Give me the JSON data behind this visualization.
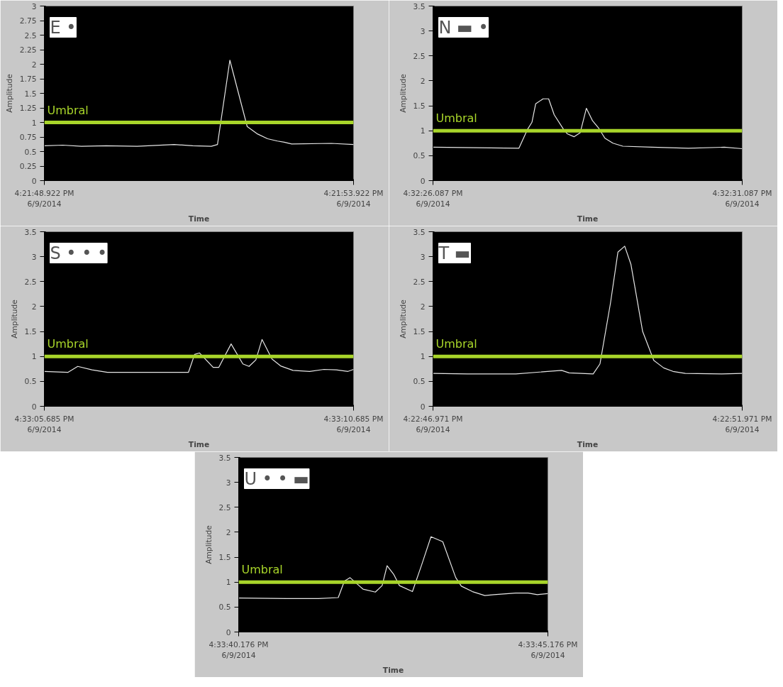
{
  "chart_data": [
    {
      "type": "line",
      "title": "E •",
      "xlabel": "Time",
      "ylabel": "Amplitude",
      "color": "#e6e6e6",
      "x": [
        "2014-06-09T16:21:48.922",
        "2014-06-09T16:21:49.222",
        "2014-06-09T16:21:49.522",
        "2014-06-09T16:21:49.922",
        "2014-06-09T16:21:50.422",
        "2014-06-09T16:21:51.022",
        "2014-06-09T16:21:51.322",
        "2014-06-09T16:21:51.622",
        "2014-06-09T16:21:51.722",
        "2014-06-09T16:21:51.922",
        "2014-06-09T16:21:52.202",
        "2014-06-09T16:21:52.372",
        "2014-06-09T16:21:52.532",
        "2014-06-09T16:21:52.692",
        "2014-06-09T16:21:52.802",
        "2014-06-09T16:21:52.922",
        "2014-06-09T16:21:53.562",
        "2014-06-09T16:21:53.922"
      ],
      "values": [
        0.6,
        0.61,
        0.59,
        0.6,
        0.59,
        0.62,
        0.6,
        0.59,
        0.62,
        2.07,
        0.93,
        0.8,
        0.72,
        0.68,
        0.66,
        0.63,
        0.64,
        0.62
      ],
      "xlim": [
        "2014-06-09T16:21:48.922",
        "2014-06-09T16:21:53.922"
      ],
      "xticks": [
        {
          "value": "2014-06-09T16:21:48.922",
          "label": "4:21:48.922 PM\n6/9/2014"
        },
        {
          "value": "2014-06-09T16:21:53.922",
          "label": "4:21:53.922 PM\n6/9/2014"
        }
      ],
      "ylim": [
        0,
        3
      ],
      "yticks": [
        0,
        0.25,
        0.5,
        0.75,
        1,
        1.25,
        1.5,
        1.75,
        2,
        2.25,
        2.5,
        2.75,
        3
      ],
      "ref_lines": [
        {
          "axis": "y",
          "value": 1,
          "label": "Umbral",
          "color": "#a8d52a"
        }
      ]
    },
    {
      "type": "line",
      "title": "N ▬ •",
      "xlabel": "Time",
      "ylabel": "Amplitude",
      "color": "#e6e6e6",
      "x": [
        "2014-06-09T16:32:26.087",
        "2014-06-09T16:32:26.787",
        "2014-06-09T16:32:27.477",
        "2014-06-09T16:32:27.617",
        "2014-06-09T16:32:27.687",
        "2014-06-09T16:32:27.747",
        "2014-06-09T16:32:27.867",
        "2014-06-09T16:32:27.957",
        "2014-06-09T16:32:28.047",
        "2014-06-09T16:32:28.197",
        "2014-06-09T16:32:28.257",
        "2014-06-09T16:32:28.367",
        "2014-06-09T16:32:28.467",
        "2014-06-09T16:32:28.567",
        "2014-06-09T16:32:28.667",
        "2014-06-09T16:32:28.767",
        "2014-06-09T16:32:28.867",
        "2014-06-09T16:32:28.997",
        "2014-06-09T16:32:29.157",
        "2014-06-09T16:32:29.627",
        "2014-06-09T16:32:30.217",
        "2014-06-09T16:32:30.797",
        "2014-06-09T16:32:31.087"
      ],
      "values": [
        0.67,
        0.66,
        0.65,
        1.03,
        1.17,
        1.54,
        1.64,
        1.64,
        1.32,
        1.03,
        0.94,
        0.88,
        0.96,
        1.45,
        1.2,
        1.05,
        0.85,
        0.75,
        0.69,
        0.67,
        0.65,
        0.67,
        0.64
      ],
      "xlim": [
        "2014-06-09T16:32:26.087",
        "2014-06-09T16:32:31.087"
      ],
      "xticks": [
        {
          "value": "2014-06-09T16:32:26.087",
          "label": "4:32:26.087 PM\n6/9/2014"
        },
        {
          "value": "2014-06-09T16:32:31.087",
          "label": "4:32:31.087 PM\n6/9/2014"
        }
      ],
      "ylim": [
        0,
        3.5
      ],
      "yticks": [
        0,
        0.5,
        1,
        1.5,
        2,
        2.5,
        3,
        3.5
      ],
      "ref_lines": [
        {
          "axis": "y",
          "value": 1,
          "label": "Umbral",
          "color": "#a8d52a"
        }
      ]
    },
    {
      "type": "line",
      "title": "S • • •",
      "xlabel": "Time",
      "ylabel": "Amplitude",
      "color": "#e6e6e6",
      "x": [
        "2014-06-09T16:33:05.685",
        "2014-06-09T16:33:06.065",
        "2014-06-09T16:33:06.225",
        "2014-06-09T16:33:06.455",
        "2014-06-09T16:33:06.705",
        "2014-06-09T16:33:07.235",
        "2014-06-09T16:33:08.015",
        "2014-06-09T16:33:08.115",
        "2014-06-09T16:33:08.195",
        "2014-06-09T16:33:08.415",
        "2014-06-09T16:33:08.505",
        "2014-06-09T16:33:08.705",
        "2014-06-09T16:33:08.895",
        "2014-06-09T16:33:08.995",
        "2014-06-09T16:33:09.105",
        "2014-06-09T16:33:09.205",
        "2014-06-09T16:33:09.365",
        "2014-06-09T16:33:09.505",
        "2014-06-09T16:33:09.705",
        "2014-06-09T16:33:09.975",
        "2014-06-09T16:33:10.205",
        "2014-06-09T16:33:10.405",
        "2014-06-09T16:33:10.595",
        "2014-06-09T16:33:10.685"
      ],
      "values": [
        0.7,
        0.68,
        0.8,
        0.73,
        0.68,
        0.68,
        0.68,
        1.04,
        1.07,
        0.78,
        0.78,
        1.25,
        0.85,
        0.8,
        0.93,
        1.34,
        0.95,
        0.81,
        0.72,
        0.7,
        0.74,
        0.73,
        0.7,
        0.74
      ],
      "xlim": [
        "2014-06-09T16:33:05.685",
        "2014-06-09T16:33:10.685"
      ],
      "xticks": [
        {
          "value": "2014-06-09T16:33:05.685",
          "label": "4:33:05.685 PM\n6/9/2014"
        },
        {
          "value": "2014-06-09T16:33:10.685",
          "label": "4:33:10.685 PM\n6/9/2014"
        }
      ],
      "ylim": [
        0,
        3.5
      ],
      "yticks": [
        0,
        0.5,
        1,
        1.5,
        2,
        2.5,
        3,
        3.5
      ],
      "ref_lines": [
        {
          "axis": "y",
          "value": 1,
          "label": "Umbral",
          "color": "#a8d52a"
        }
      ]
    },
    {
      "type": "line",
      "title": "T ▬",
      "xlabel": "Time",
      "ylabel": "Amplitude",
      "color": "#e6e6e6",
      "x": [
        "2014-06-09T16:22:46.971",
        "2014-06-09T16:22:47.531",
        "2014-06-09T16:22:48.311",
        "2014-06-09T16:22:49.051",
        "2014-06-09T16:22:49.171",
        "2014-06-09T16:22:49.561",
        "2014-06-09T16:22:49.671",
        "2014-06-09T16:22:49.841",
        "2014-06-09T16:22:49.961",
        "2014-06-09T16:22:50.071",
        "2014-06-09T16:22:50.171",
        "2014-06-09T16:22:50.361",
        "2014-06-09T16:22:50.541",
        "2014-06-09T16:22:50.701",
        "2014-06-09T16:22:50.851",
        "2014-06-09T16:22:51.051",
        "2014-06-09T16:22:51.641",
        "2014-06-09T16:22:51.971"
      ],
      "values": [
        0.66,
        0.65,
        0.65,
        0.72,
        0.67,
        0.65,
        0.85,
        2.07,
        3.09,
        3.21,
        2.85,
        1.5,
        0.92,
        0.77,
        0.7,
        0.66,
        0.65,
        0.66
      ],
      "xlim": [
        "2014-06-09T16:22:46.971",
        "2014-06-09T16:22:51.971"
      ],
      "xticks": [
        {
          "value": "2014-06-09T16:22:46.971",
          "label": "4:22:46.971 PM\n6/9/2014"
        },
        {
          "value": "2014-06-09T16:22:51.971",
          "label": "4:22:51.971 PM\n6/9/2014"
        }
      ],
      "ylim": [
        0,
        3.5
      ],
      "yticks": [
        0,
        0.5,
        1,
        1.5,
        2,
        2.5,
        3,
        3.5
      ],
      "ref_lines": [
        {
          "axis": "y",
          "value": 1,
          "label": "Umbral",
          "color": "#a8d52a"
        }
      ]
    },
    {
      "type": "line",
      "title": "U • • ▬",
      "xlabel": "Time",
      "ylabel": "Amplitude",
      "color": "#e6e6e6",
      "x": [
        "2014-06-09T16:33:40.176",
        "2014-06-09T16:33:40.956",
        "2014-06-09T16:33:41.466",
        "2014-06-09T16:33:41.786",
        "2014-06-09T16:33:41.886",
        "2014-06-09T16:33:41.976",
        "2014-06-09T16:33:42.186",
        "2014-06-09T16:33:42.386",
        "2014-06-09T16:33:42.496",
        "2014-06-09T16:33:42.576",
        "2014-06-09T16:33:42.686",
        "2014-06-09T16:33:42.776",
        "2014-06-09T16:33:42.986",
        "2014-06-09T16:33:43.136",
        "2014-06-09T16:33:43.286",
        "2014-06-09T16:33:43.476",
        "2014-06-09T16:33:43.686",
        "2014-06-09T16:33:43.776",
        "2014-06-09T16:33:43.956",
        "2014-06-09T16:33:44.156",
        "2014-06-09T16:33:44.306",
        "2014-06-09T16:33:44.656",
        "2014-06-09T16:33:44.856",
        "2014-06-09T16:33:45.006",
        "2014-06-09T16:33:45.176"
      ],
      "values": [
        0.68,
        0.67,
        0.67,
        0.69,
        1.02,
        1.09,
        0.86,
        0.8,
        0.93,
        1.33,
        1.15,
        0.93,
        0.81,
        1.35,
        1.91,
        1.81,
        1.09,
        0.92,
        0.81,
        0.73,
        0.75,
        0.78,
        0.78,
        0.75,
        0.77
      ],
      "xlim": [
        "2014-06-09T16:33:40.176",
        "2014-06-09T16:33:45.176"
      ],
      "xticks": [
        {
          "value": "2014-06-09T16:33:40.176",
          "label": "4:33:40.176 PM\n6/9/2014"
        },
        {
          "value": "2014-06-09T16:33:45.176",
          "label": "4:33:45.176 PM\n6/9/2014"
        }
      ],
      "ylim": [
        0,
        3.5
      ],
      "yticks": [
        0,
        0.5,
        1,
        1.5,
        2,
        2.5,
        3,
        3.5
      ],
      "ref_lines": [
        {
          "axis": "y",
          "value": 1,
          "label": "Umbral",
          "color": "#a8d52a"
        }
      ]
    }
  ]
}
